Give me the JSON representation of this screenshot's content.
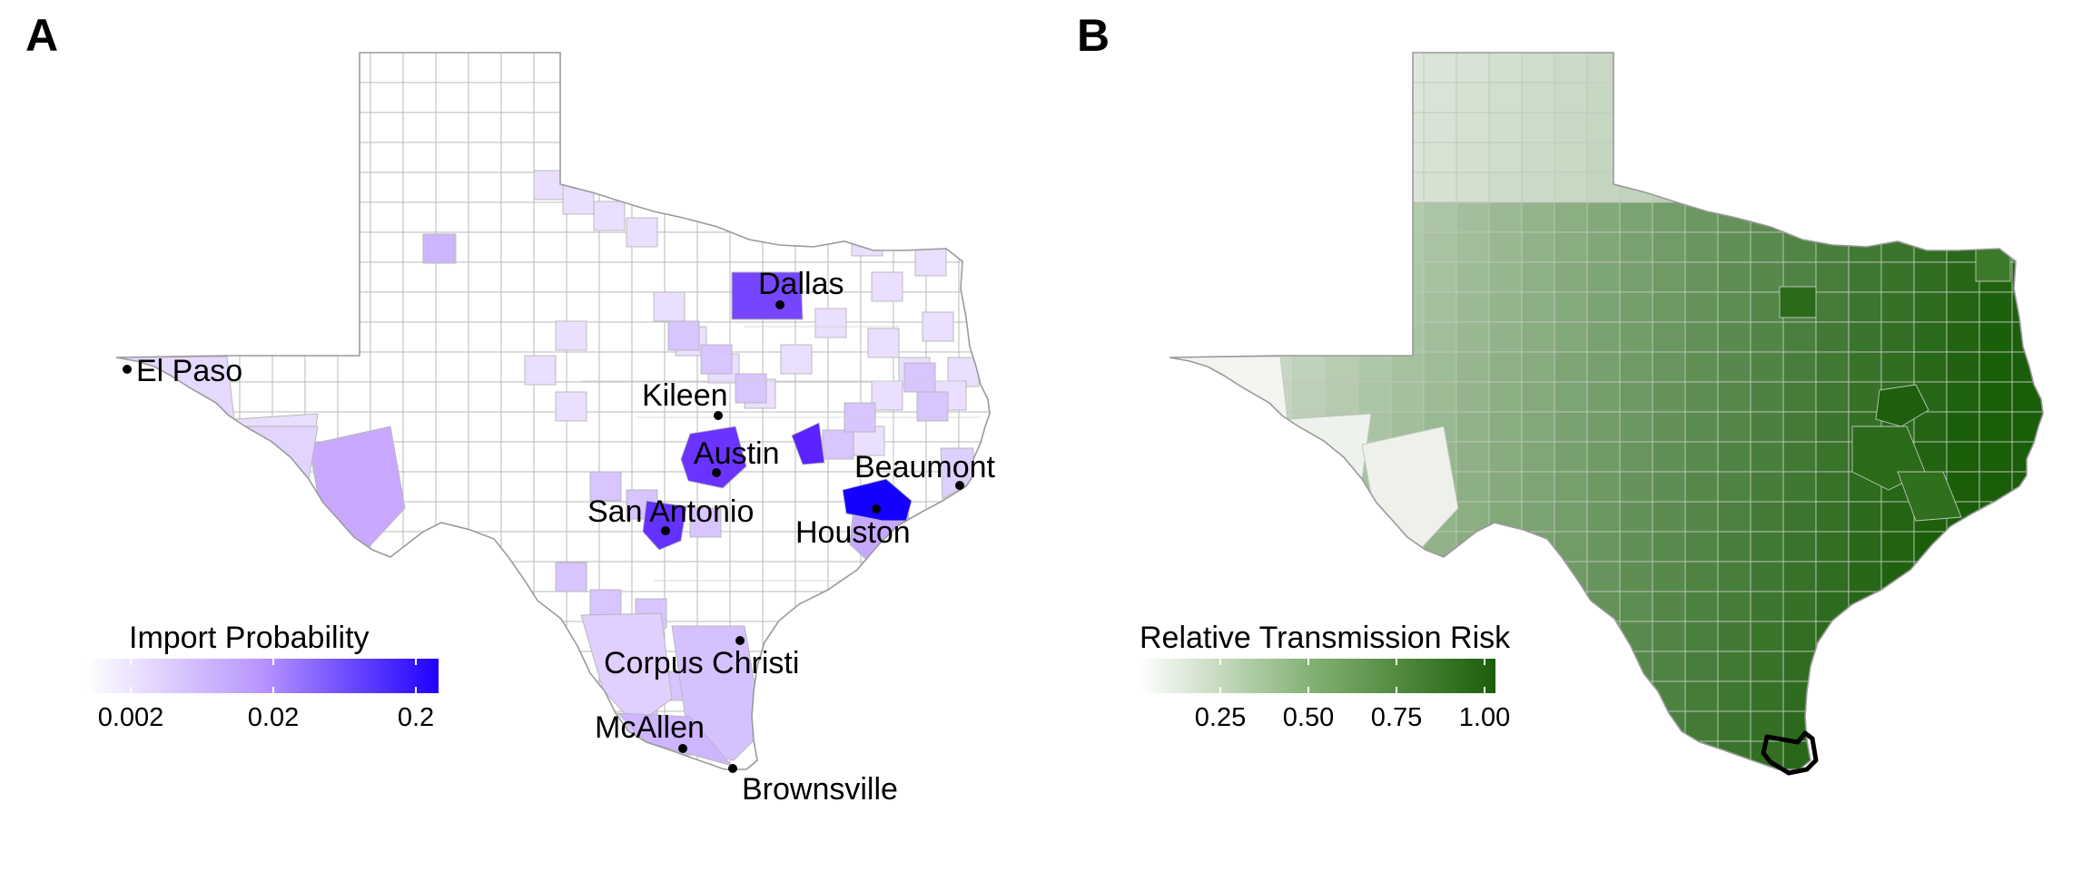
{
  "panels": [
    {
      "letter": "A",
      "legend_title": "Import Probability",
      "legend_ticks": [
        "0.002",
        "0.02",
        "0.2"
      ],
      "legend_scale": "log",
      "color_low": "#ffffff",
      "color_high": "#1f00ff",
      "cities": [
        {
          "id": "el-paso",
          "name": "El Paso"
        },
        {
          "id": "dallas",
          "name": "Dallas"
        },
        {
          "id": "kileen",
          "name": "Kileen"
        },
        {
          "id": "austin",
          "name": "Austin"
        },
        {
          "id": "beaumont",
          "name": "Beaumont"
        },
        {
          "id": "san-antonio",
          "name": "San Antonio"
        },
        {
          "id": "houston",
          "name": "Houston"
        },
        {
          "id": "corpus-christi",
          "name": "Corpus Christi"
        },
        {
          "id": "mcallen",
          "name": "McAllen"
        },
        {
          "id": "brownsville",
          "name": "Brownsville"
        }
      ]
    },
    {
      "letter": "B",
      "legend_title": "Relative Transmission Risk",
      "legend_ticks": [
        "0.25",
        "0.50",
        "0.75",
        "1.00"
      ],
      "color_low": "#ffffff",
      "color_high": "#1a5e0a",
      "highlighted_county": "Cameron County (Brownsville)"
    }
  ]
}
